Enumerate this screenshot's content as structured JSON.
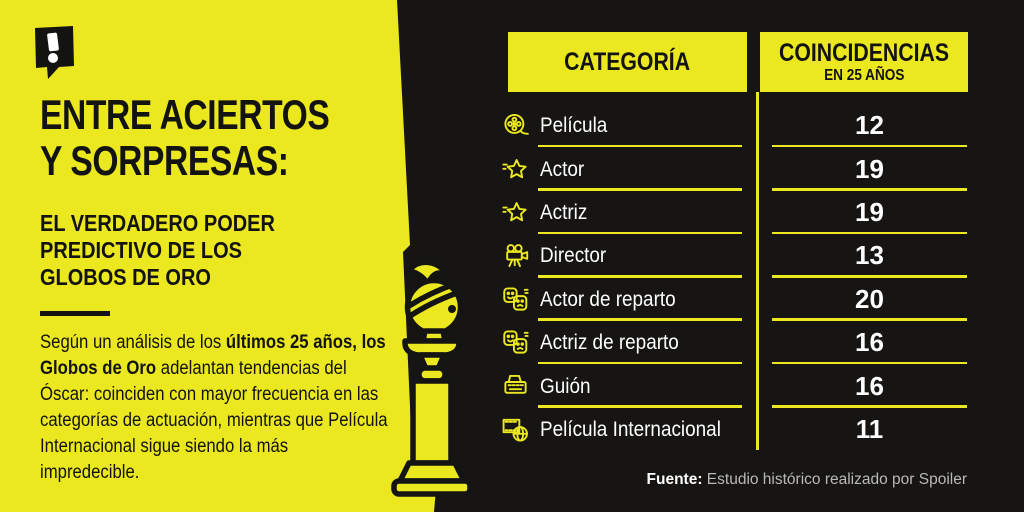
{
  "colors": {
    "yellow": "#ECE81F",
    "dark": "#161513",
    "ink": "#131312",
    "white": "#ffffff",
    "muted": "#b9b9b4"
  },
  "logo": {
    "mark": "!"
  },
  "left": {
    "title_line1": "ENTRE ACIERTOS",
    "title_line2": "Y SORPRESAS:",
    "subtitle_line1": "EL VERDADERO PODER",
    "subtitle_line2": "PREDICTIVO DE LOS",
    "subtitle_line3": "GLOBOS DE ORO",
    "body_seg1": "Según un análisis de los ",
    "body_seg2": "últimos 25 años, los Globos de Oro",
    "body_seg3": " adelantan tendencias del Óscar: coinciden con mayor frecuencia en las categorías de actuación, mientras que Película Internacional sigue siendo la más impredecible."
  },
  "table": {
    "header_category": "CATEGORÍA",
    "header_value_line1": "COINCIDENCIAS",
    "header_value_line2": "EN 25 AÑOS",
    "rows": [
      {
        "icon": "film-reel-icon",
        "label": "Película",
        "value": "12"
      },
      {
        "icon": "star-icon",
        "label": "Actor",
        "value": "19"
      },
      {
        "icon": "star-icon",
        "label": "Actriz",
        "value": "19"
      },
      {
        "icon": "movie-camera-icon",
        "label": "Director",
        "value": "13"
      },
      {
        "icon": "theater-masks-icon",
        "label": "Actor de reparto",
        "value": "20"
      },
      {
        "icon": "theater-masks-icon",
        "label": "Actriz de reparto",
        "value": "16"
      },
      {
        "icon": "typewriter-icon",
        "label": "Guión",
        "value": "16"
      },
      {
        "icon": "film-globe-icon",
        "label": "Película Internacional",
        "value": "11"
      }
    ]
  },
  "footer": {
    "source_label": "Fuente:",
    "source_text": " Estudio histórico realizado por Spoiler"
  },
  "chart_data": {
    "type": "table",
    "title": "Entre aciertos y sorpresas: el verdadero poder predictivo de los Globos de Oro",
    "columns": [
      "Categoría",
      "Coincidencias en 25 años"
    ],
    "categories": [
      "Película",
      "Actor",
      "Actriz",
      "Director",
      "Actor de reparto",
      "Actriz de reparto",
      "Guión",
      "Película Internacional"
    ],
    "values": [
      12,
      19,
      19,
      13,
      20,
      16,
      16,
      11
    ],
    "source": "Fuente: Estudio histórico realizado por Spoiler"
  }
}
